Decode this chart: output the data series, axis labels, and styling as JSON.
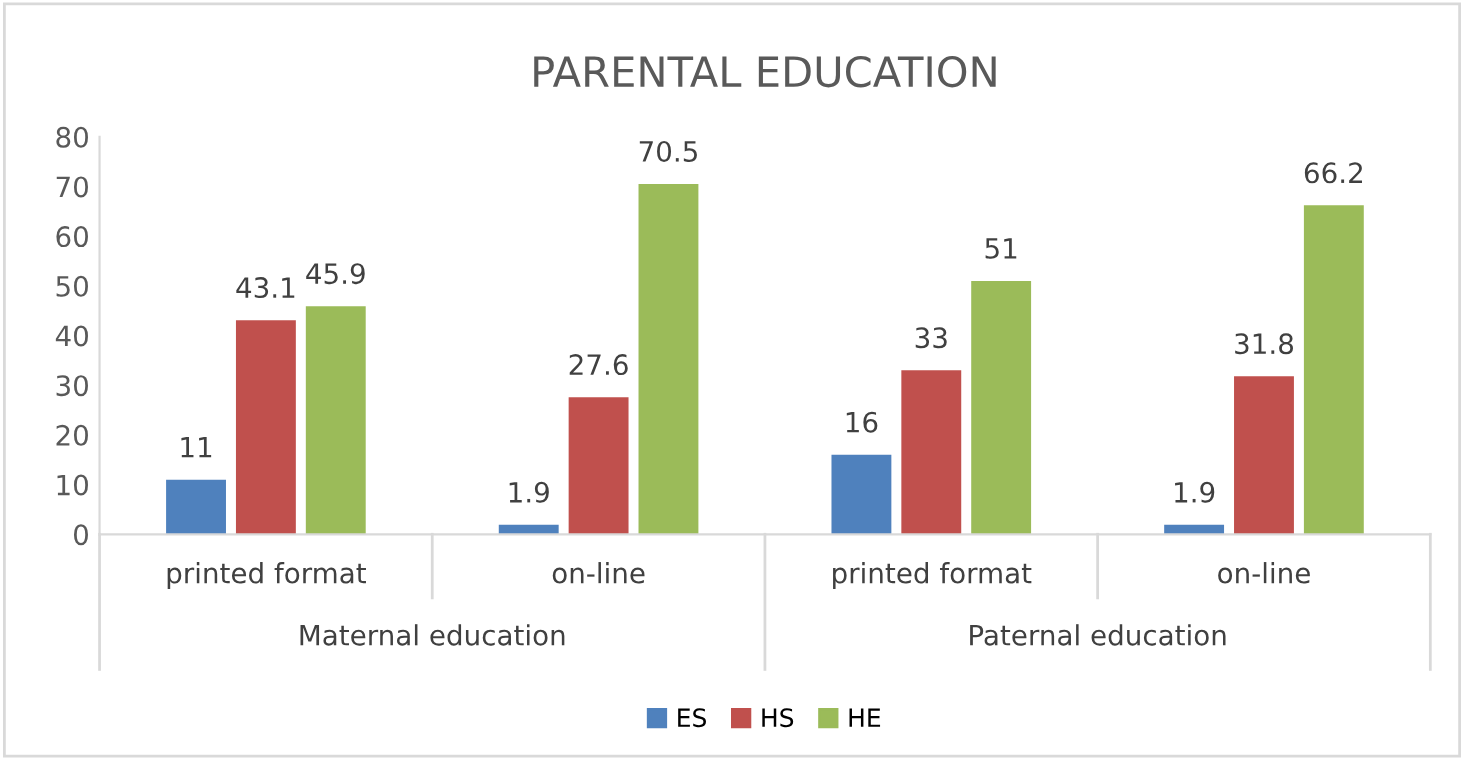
{
  "chart_data": {
    "type": "bar",
    "title": "PARENTAL EDUCATION",
    "categories": [
      "printed format",
      "on-line",
      "printed format",
      "on-line"
    ],
    "series": [
      {
        "name": "ES",
        "color": "#4f81bd",
        "values": [
          11,
          1.9,
          16,
          1.9
        ]
      },
      {
        "name": "HS",
        "color": "#c0504d",
        "values": [
          43.1,
          27.6,
          33,
          31.8
        ]
      },
      {
        "name": "HE",
        "color": "#9bbb59",
        "values": [
          45.9,
          70.5,
          51,
          66.2
        ]
      }
    ],
    "annotations": [
      "Maternal education",
      "Paternal education"
    ],
    "ylim": [
      0,
      80
    ],
    "yticks": [
      0,
      10,
      20,
      30,
      40,
      50,
      60,
      70,
      80
    ],
    "data_labels": true,
    "grid": false,
    "legend": "bottom"
  }
}
